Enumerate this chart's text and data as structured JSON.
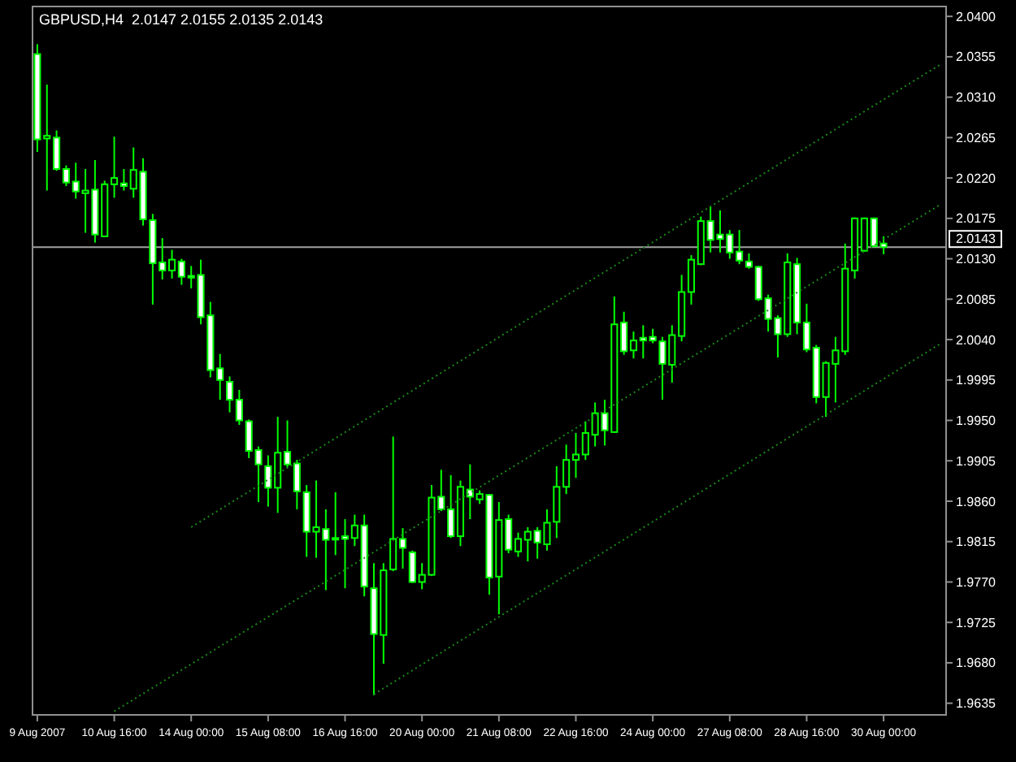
{
  "chart_data": {
    "type": "candlestick",
    "title": "GBPUSD,H4  2.0147 2.0155 2.0135 2.0143",
    "categories": [
      "9 Aug 2007",
      null,
      null,
      null,
      null,
      null,
      null,
      null,
      "10 Aug 16:00",
      null,
      null,
      null,
      null,
      null,
      null,
      null,
      "14 Aug 00:00",
      null,
      null,
      null,
      null,
      null,
      null,
      null,
      "15 Aug 08:00",
      null,
      null,
      null,
      null,
      null,
      null,
      null,
      "16 Aug 16:00",
      null,
      null,
      null,
      null,
      null,
      null,
      null,
      "20 Aug 00:00",
      null,
      null,
      null,
      null,
      null,
      null,
      null,
      "21 Aug 08:00",
      null,
      null,
      null,
      null,
      null,
      null,
      null,
      "22 Aug 16:00",
      null,
      null,
      null,
      null,
      null,
      null,
      null,
      "24 Aug 00:00",
      null,
      null,
      null,
      null,
      null,
      null,
      null,
      "27 Aug 08:00",
      null,
      null,
      null,
      null,
      null,
      null,
      null,
      "28 Aug 16:00",
      null,
      null,
      null,
      null,
      null,
      null,
      null,
      "30 Aug 00:00",
      null,
      null,
      null,
      null,
      null,
      null
    ],
    "ylim": [
      1.9622,
      2.0411
    ],
    "yticks": [
      {
        "value": 2.04,
        "label": "2.0400"
      },
      {
        "value": 2.0355,
        "label": "2.0355"
      },
      {
        "value": 2.031,
        "label": "2.0310"
      },
      {
        "value": 2.0265,
        "label": "2.0265"
      },
      {
        "value": 2.022,
        "label": "2.0220"
      },
      {
        "value": 2.0175,
        "label": "2.0175"
      },
      {
        "value": 2.013,
        "label": "2.0130"
      },
      {
        "value": 2.0085,
        "label": "2.0085"
      },
      {
        "value": 2.004,
        "label": "2.0040"
      },
      {
        "value": 1.9995,
        "label": "1.9995"
      },
      {
        "value": 1.995,
        "label": "1.9950"
      },
      {
        "value": 1.9905,
        "label": "1.9905"
      },
      {
        "value": 1.986,
        "label": "1.9860"
      },
      {
        "value": 1.9815,
        "label": "1.9815"
      },
      {
        "value": 1.977,
        "label": "1.9770"
      },
      {
        "value": 1.9725,
        "label": "1.9725"
      },
      {
        "value": 1.968,
        "label": "1.9680"
      },
      {
        "value": 1.9635,
        "label": "1.9635"
      }
    ],
    "line_style": "dotted",
    "ref_lines": [
      {
        "axis": "y",
        "value": 2.0143,
        "label": "2.0143",
        "color": "#a0a0a0"
      }
    ],
    "series": [
      {
        "color": "#00ff00",
        "ohlc": [
          [
            2.0358,
            2.0369,
            2.0249,
            2.0263
          ],
          [
            2.0264,
            2.0324,
            2.0206,
            2.0267
          ],
          [
            2.0265,
            2.0273,
            2.0228,
            2.023
          ],
          [
            2.023,
            2.0234,
            2.0211,
            2.0215
          ],
          [
            2.0216,
            2.0237,
            2.0197,
            2.0205
          ],
          [
            2.0203,
            2.023,
            2.0159,
            2.0206
          ],
          [
            2.0207,
            2.024,
            2.0148,
            2.0157
          ],
          [
            2.0155,
            2.0217,
            2.0154,
            2.0213
          ],
          [
            2.0213,
            2.0266,
            2.0198,
            2.022
          ],
          [
            2.0214,
            2.023,
            2.0206,
            2.0211
          ],
          [
            2.0208,
            2.0254,
            2.0198,
            2.0229
          ],
          [
            2.0227,
            2.0242,
            2.0167,
            2.0174
          ],
          [
            2.0173,
            2.018,
            2.0079,
            2.0125
          ],
          [
            2.0126,
            2.0153,
            2.0107,
            2.0117
          ],
          [
            2.0117,
            2.014,
            2.0108,
            2.0129
          ],
          [
            2.0127,
            2.013,
            2.0101,
            2.011
          ],
          [
            2.0111,
            2.0122,
            2.0097,
            2.0109
          ],
          [
            2.0112,
            2.0129,
            2.0057,
            2.0065
          ],
          [
            2.0067,
            2.0082,
            1.9998,
            2.0006
          ],
          [
            2.0008,
            2.0024,
            1.9973,
            1.9995
          ],
          [
            1.9993,
            1.9999,
            1.9959,
            1.9973
          ],
          [
            1.9973,
            1.9984,
            1.9945,
            1.995
          ],
          [
            1.9949,
            1.9951,
            1.9908,
            1.9916
          ],
          [
            1.9917,
            1.9921,
            1.9859,
            1.9901
          ],
          [
            1.9899,
            1.9911,
            1.9854,
            1.9875
          ],
          [
            1.9875,
            1.9954,
            1.9847,
            1.9914
          ],
          [
            1.9915,
            1.995,
            1.9898,
            1.9901
          ],
          [
            1.9902,
            1.9906,
            1.9851,
            1.9871
          ],
          [
            1.987,
            1.9878,
            1.9798,
            1.9826
          ],
          [
            1.9826,
            1.9883,
            1.9797,
            1.9831
          ],
          [
            1.9829,
            1.9851,
            1.9761,
            1.9817
          ],
          [
            1.9819,
            1.987,
            1.98,
            1.9818
          ],
          [
            1.9821,
            1.984,
            1.9763,
            1.9818
          ],
          [
            1.9819,
            1.9845,
            1.981,
            1.9833
          ],
          [
            1.9833,
            1.9845,
            1.9754,
            1.9765
          ],
          [
            1.9763,
            1.9791,
            1.9644,
            1.9712
          ],
          [
            1.9711,
            1.9791,
            1.9679,
            1.9783
          ],
          [
            1.9784,
            1.9932,
            1.9782,
            1.9818
          ],
          [
            1.9818,
            1.983,
            1.9785,
            1.9808
          ],
          [
            1.9803,
            1.9805,
            1.9769,
            1.977
          ],
          [
            1.977,
            1.9791,
            1.9762,
            1.9778
          ],
          [
            1.9778,
            1.9878,
            1.9777,
            1.9864
          ],
          [
            1.9865,
            1.9895,
            1.9849,
            1.9851
          ],
          [
            1.9851,
            1.9889,
            1.9819,
            1.9821
          ],
          [
            1.9821,
            1.9883,
            1.981,
            1.9876
          ],
          [
            1.9873,
            1.9901,
            1.984,
            1.9865
          ],
          [
            1.9862,
            1.9872,
            1.9857,
            1.9868
          ],
          [
            1.9867,
            1.9868,
            1.9756,
            1.9775
          ],
          [
            1.9776,
            1.9859,
            1.9734,
            1.9839
          ],
          [
            1.984,
            1.9845,
            1.9802,
            1.9806
          ],
          [
            1.9804,
            1.9825,
            1.9798,
            1.9818
          ],
          [
            1.9817,
            1.9831,
            1.9793,
            1.9826
          ],
          [
            1.9827,
            1.9831,
            1.9796,
            1.9814
          ],
          [
            1.9812,
            1.9851,
            1.9805,
            1.9836
          ],
          [
            1.9837,
            1.9899,
            1.9819,
            1.9876
          ],
          [
            1.9876,
            1.9923,
            1.9868,
            1.9906
          ],
          [
            1.9906,
            1.9936,
            1.9886,
            1.9912
          ],
          [
            1.9912,
            1.9949,
            1.9906,
            1.9936
          ],
          [
            1.9934,
            1.997,
            1.9921,
            1.9958
          ],
          [
            1.9958,
            1.9973,
            1.9922,
            1.9939
          ],
          [
            1.9937,
            2.0088,
            1.9936,
            2.0057
          ],
          [
            2.0059,
            2.0071,
            2.0023,
            2.0027
          ],
          [
            2.0028,
            2.0049,
            2.0019,
            2.0039
          ],
          [
            2.0042,
            2.0056,
            2.0019,
            2.0039
          ],
          [
            2.0043,
            2.0052,
            2.0036,
            2.0039
          ],
          [
            2.0038,
            2.0043,
            1.9973,
            2.0013
          ],
          [
            2.0012,
            2.0056,
            1.9992,
            2.0045
          ],
          [
            2.0044,
            2.0112,
            2.0038,
            2.0093
          ],
          [
            2.0093,
            2.0134,
            2.0079,
            2.0129
          ],
          [
            2.0124,
            2.0177,
            2.0123,
            2.0172
          ],
          [
            2.0172,
            2.0188,
            2.0137,
            2.0151
          ],
          [
            2.0157,
            2.0184,
            2.0137,
            2.0152
          ],
          [
            2.0157,
            2.0162,
            2.013,
            2.0137
          ],
          [
            2.0138,
            2.0162,
            2.0124,
            2.0128
          ],
          [
            2.0127,
            2.0136,
            2.0119,
            2.0121
          ],
          [
            2.0121,
            2.0122,
            2.0083,
            2.0085
          ],
          [
            2.0086,
            2.009,
            2.0049,
            2.0063
          ],
          [
            2.0064,
            2.0067,
            2.002,
            2.0046
          ],
          [
            2.0046,
            2.0136,
            2.0043,
            2.0126
          ],
          [
            2.0124,
            2.0131,
            2.0046,
            2.0059
          ],
          [
            2.0059,
            2.008,
            2.0026,
            2.0029
          ],
          [
            2.0031,
            2.0034,
            1.9969,
            1.9976
          ],
          [
            1.9976,
            2.0016,
            1.9954,
            2.0014
          ],
          [
            2.0013,
            2.0043,
            1.997,
            2.0028
          ],
          [
            2.0027,
            2.0147,
            2.0023,
            2.0119
          ],
          [
            2.0117,
            2.0176,
            2.0108,
            2.0175
          ],
          [
            2.0139,
            2.0176,
            2.0138,
            2.0175
          ],
          [
            2.0175,
            2.0176,
            2.0143,
            2.0144
          ],
          [
            2.0147,
            2.0155,
            2.0135,
            2.0143
          ],
          null,
          null,
          null,
          null,
          null,
          null
        ]
      },
      {
        "type": "line",
        "color": "#1a8a1a",
        "values": [
          null,
          null,
          null,
          null,
          null,
          null,
          null,
          null,
          null,
          null,
          null,
          null,
          null,
          null,
          null,
          null,
          1.9831,
          null,
          null,
          null,
          null,
          null,
          null,
          null,
          null,
          null,
          null,
          null,
          null,
          null,
          null,
          null,
          null,
          null,
          null,
          null,
          null,
          null,
          null,
          null,
          null,
          null,
          null,
          null,
          null,
          null,
          null,
          null,
          null,
          null,
          null,
          null,
          null,
          null,
          null,
          null,
          null,
          null,
          null,
          null,
          null,
          null,
          null,
          null,
          null,
          null,
          null,
          null,
          null,
          null,
          null,
          null,
          null,
          null,
          null,
          null,
          null,
          null,
          null,
          null,
          null,
          null,
          null,
          null,
          null,
          null,
          null,
          null,
          null,
          null,
          null,
          null,
          null,
          null,
          2.0347
        ]
      },
      {
        "type": "line",
        "color": "#1a8a1a",
        "values": [
          null,
          null,
          null,
          null,
          null,
          null,
          null,
          null,
          1.9626,
          null,
          null,
          null,
          null,
          null,
          null,
          null,
          null,
          null,
          null,
          null,
          null,
          null,
          null,
          null,
          null,
          null,
          null,
          null,
          null,
          null,
          null,
          null,
          null,
          null,
          null,
          null,
          null,
          null,
          null,
          null,
          null,
          null,
          null,
          null,
          null,
          null,
          null,
          null,
          null,
          null,
          null,
          null,
          null,
          null,
          null,
          null,
          null,
          null,
          null,
          null,
          null,
          null,
          null,
          null,
          null,
          null,
          null,
          null,
          null,
          null,
          null,
          null,
          null,
          null,
          null,
          null,
          null,
          null,
          null,
          null,
          null,
          null,
          null,
          null,
          null,
          null,
          null,
          null,
          null,
          null,
          null,
          null,
          null,
          null,
          2.0191
        ]
      },
      {
        "type": "line",
        "color": "#1a8a1a",
        "values": [
          null,
          null,
          null,
          null,
          null,
          null,
          null,
          null,
          null,
          null,
          null,
          null,
          null,
          null,
          null,
          null,
          null,
          null,
          null,
          null,
          null,
          null,
          null,
          null,
          null,
          null,
          null,
          null,
          null,
          null,
          null,
          null,
          null,
          null,
          null,
          1.9645,
          null,
          null,
          null,
          null,
          null,
          null,
          null,
          null,
          null,
          null,
          null,
          null,
          null,
          null,
          null,
          null,
          null,
          null,
          null,
          null,
          null,
          null,
          null,
          null,
          null,
          null,
          null,
          null,
          null,
          null,
          null,
          null,
          null,
          null,
          null,
          null,
          null,
          null,
          null,
          null,
          null,
          null,
          null,
          null,
          null,
          null,
          null,
          null,
          null,
          null,
          null,
          null,
          null,
          null,
          null,
          null,
          null,
          null,
          2.0036
        ]
      }
    ]
  }
}
